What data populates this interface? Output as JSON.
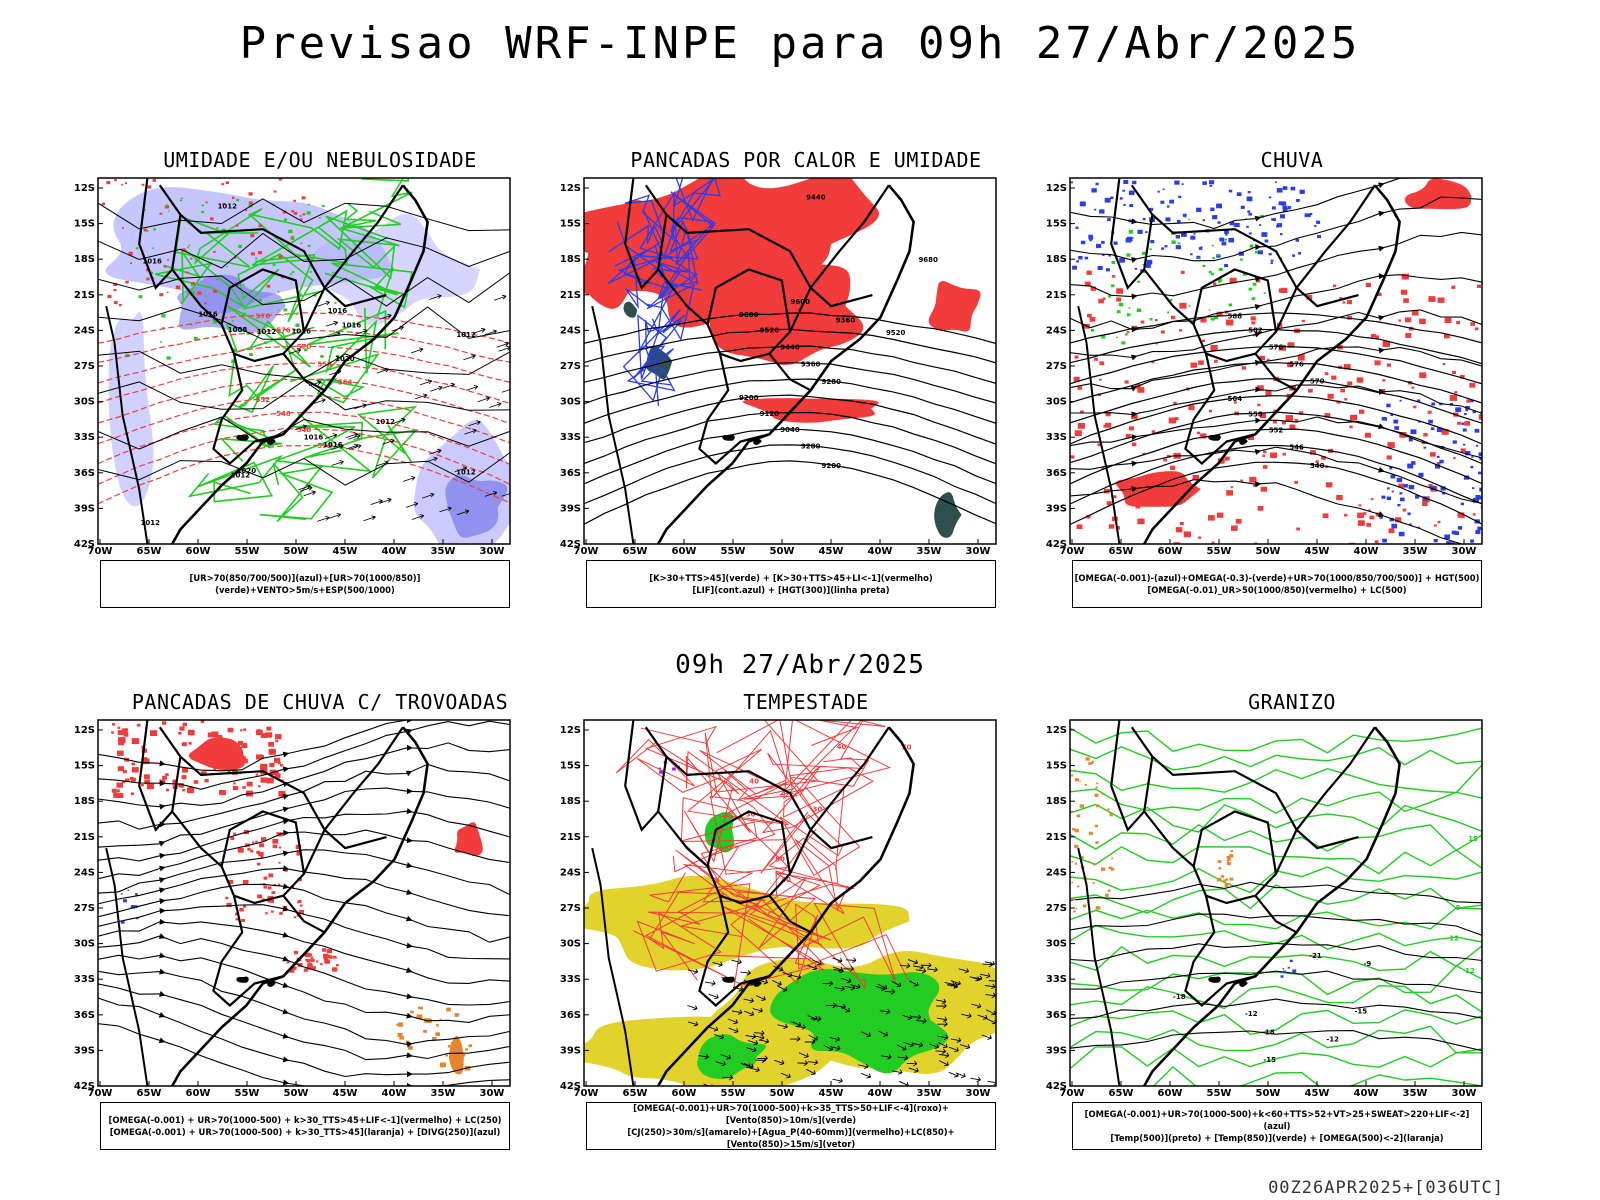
{
  "title": "Previsao WRF-INPE  para 09h 27/Abr/2025",
  "subtitle": "09h 27/Abr/2025",
  "footer": "00Z26APR2025+[036UTC]",
  "axes": {
    "lat_ticks": [
      "12S",
      "15S",
      "18S",
      "21S",
      "24S",
      "27S",
      "30S",
      "33S",
      "36S",
      "39S",
      "42S"
    ],
    "lon_ticks": [
      "70W",
      "65W",
      "60W",
      "55W",
      "50W",
      "45W",
      "40W",
      "35W",
      "30W"
    ]
  },
  "colors": {
    "humid_blue": "#b3b3ff",
    "humid_blue_dark": "#6a6ae6",
    "green": "#22cc22",
    "red": "#f23b3b",
    "dark_teal": "#2f4f4f",
    "blue": "#2a3cf0",
    "yellow": "#e2d22c",
    "orange": "#e8852b",
    "purple": "#a020f0"
  },
  "panels": [
    {
      "id": "umidade",
      "title": "UMIDADE E/OU NEBULOSIDADE",
      "legend": [
        "[UR>70(850/700/500)](azul)+[UR>70(1000/850)](verde)+VENTO>5m/s+ESP(500/1000)"
      ],
      "contour_labels": [
        "1012",
        "1012",
        "1012",
        "1016",
        "1012",
        "1016",
        "1020",
        "1016",
        "1012",
        "1016",
        "1016",
        "1012",
        "1008",
        "1020",
        "1016",
        "1012",
        "1016"
      ],
      "red_labels": [
        "576",
        "576",
        "570",
        "558",
        "564",
        "552",
        "546",
        "540",
        "552"
      ]
    },
    {
      "id": "pancadas-calor",
      "title": "PANCADAS POR CALOR E UMIDADE",
      "legend": [
        "[K>30+TTS>45](verde) + [K>30+TTS>45+LI<-1](vermelho)",
        "[LIF](cont.azul) + [HGT(300)](linha preta)"
      ],
      "contour_labels": [
        "9680",
        "9600",
        "9520",
        "9440",
        "9360",
        "9600",
        "9520",
        "9440",
        "9360",
        "9280",
        "9200",
        "9120",
        "9040",
        "9280",
        "9200",
        "9280",
        "9360",
        "9440"
      ]
    },
    {
      "id": "chuva",
      "title": "CHUVA",
      "legend": [
        "[OMEGA(-0.001)-(azul)+OMEGA(-0.3)-(verde)+UR>70(1000/850/700/500)] + HGT(500)",
        "[OMEGA(-0.01)_UR>50(1000/850)(vermelho) + LC(500)"
      ],
      "contour_labels": [
        "588",
        "582",
        "576",
        "576",
        "570",
        "564",
        "558",
        "552",
        "546",
        "540",
        "570",
        "582"
      ]
    },
    {
      "id": "pancadas-trovoadas",
      "title": "PANCADAS DE CHUVA C/ TROVOADAS",
      "legend": [
        "[OMEGA(-0.001) + UR>70(1000-500) + k>30_TTS>45+LIF<-1](vermelho) + LC(250)",
        "[OMEGA(-0.001) + UR>70(1000-500) + k>30_TTS>45](laranja) + [DIVG(250)](azul)"
      ]
    },
    {
      "id": "tempestade",
      "title": "TEMPESTADE",
      "legend": [
        "[OMEGA(-0.001)+UR>70(1000-500)+k>35_TTS>50+LIF<-4](roxo)+[Vento(850)>10m/s](verde)",
        "[CJ(250)>30m/s](amarelo)+[Agua_P(40-60mm)](vermelho)+LC(850)+[Vento(850)>15m/s](vetor)"
      ],
      "contour_labels": [
        "40",
        "50",
        "40",
        "30",
        "50",
        "40",
        "30"
      ]
    },
    {
      "id": "granizo",
      "title": "GRANIZO",
      "legend": [
        "[OMEGA(-0.001)+UR>70(1000-500)+k<60+TTS>52+VT>25+SWEAT>220+LIF<-2](azul)",
        "[Temp(500)](preto) + [Temp(850)](verde) + [OMEGA(500)<-2](laranja)"
      ],
      "contour_labels": [
        "-9",
        "-12",
        "-15",
        "-12",
        "-18",
        "-21",
        "-18",
        "-15",
        "12",
        "15",
        "12",
        "9"
      ]
    }
  ]
}
